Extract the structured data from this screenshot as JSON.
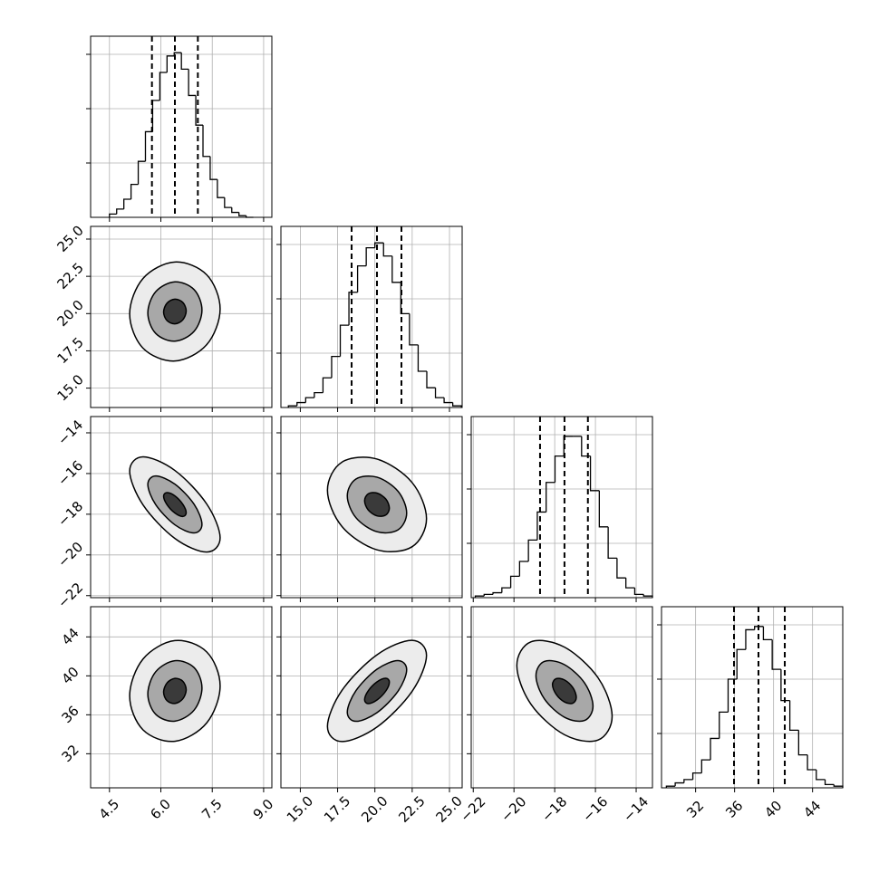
{
  "chart_data": {
    "type": "corner",
    "line_color": "#000000",
    "grid_color": "#b0b0b0",
    "grid": true,
    "contour_fills": [
      "#ececec",
      "#a8a8a8",
      "#3a3a3a"
    ],
    "hist_ylim": [
      0,
      110
    ],
    "hist_yticks": [
      33,
      66,
      99
    ],
    "parameters": [
      {
        "lim": [
          3.95,
          9.24
        ],
        "ticks": [
          4.5,
          {
            "value": 6,
            "label": "6.0"
          },
          7.5,
          {
            "value": 9,
            "label": "9.0"
          }
        ],
        "bins": [
          4.5,
          4.71,
          4.92,
          5.13,
          5.34,
          5.55,
          5.76,
          5.97,
          6.18,
          6.39,
          6.6,
          6.81,
          7.02,
          7.23,
          7.44,
          7.65,
          7.86,
          8.07,
          8.28,
          8.49,
          8.7
        ],
        "counts": [
          2,
          5,
          11,
          20,
          34,
          52,
          71,
          88,
          98,
          100,
          90,
          74,
          56,
          37,
          23,
          12,
          6,
          3,
          1,
          0
        ],
        "quantiles": [
          5.74,
          6.41,
          7.08
        ]
      },
      {
        "lim": [
          13.7,
          25.85
        ],
        "ticks": [
          {
            "value": 15,
            "label": "15.0"
          },
          17.5,
          {
            "value": 20,
            "label": "20.0"
          },
          22.5,
          {
            "value": 25,
            "label": "25.0"
          }
        ],
        "bins": [
          14.2,
          14.78,
          15.36,
          15.94,
          16.52,
          17.1,
          17.68,
          18.26,
          18.84,
          19.42,
          20.0,
          20.58,
          21.16,
          21.74,
          22.32,
          22.9,
          23.48,
          24.06,
          24.64,
          25.22,
          25.8
        ],
        "counts": [
          1,
          3,
          6,
          9,
          18,
          31,
          50,
          70,
          86,
          97,
          100,
          92,
          76,
          57,
          38,
          22,
          12,
          6,
          3,
          1
        ],
        "quantiles": [
          18.44,
          20.14,
          21.78
        ]
      },
      {
        "lim": [
          -22.1,
          -13.2
        ],
        "ticks": [
          {
            "value": -22,
            "label": "−22"
          },
          {
            "value": -20,
            "label": "−20"
          },
          {
            "value": -18,
            "label": "−18"
          },
          {
            "value": -16,
            "label": "−16"
          },
          {
            "value": -14,
            "label": "−14"
          }
        ],
        "bins": [
          -21.9,
          -21.465,
          -21.03,
          -20.595,
          -20.16,
          -19.725,
          -19.29,
          -18.855,
          -18.42,
          -17.985,
          -17.55,
          -17.115,
          -16.68,
          -16.245,
          -15.81,
          -15.375,
          -14.94,
          -14.505,
          -14.07,
          -13.635,
          -13.2
        ],
        "counts": [
          1,
          2,
          3,
          6,
          13,
          22,
          35,
          52,
          70,
          86,
          98,
          98,
          86,
          65,
          43,
          24,
          12,
          6,
          2,
          1
        ],
        "quantiles": [
          -18.72,
          -17.52,
          -16.37
        ]
      },
      {
        "lim": [
          28.5,
          47.1
        ],
        "ticks": [
          32,
          36,
          40,
          44
        ],
        "bins": [
          29,
          29.905,
          30.81,
          31.715,
          32.62,
          33.525,
          34.43,
          35.335,
          36.24,
          37.145,
          38.05,
          38.955,
          39.86,
          40.765,
          41.67,
          42.575,
          43.48,
          44.385,
          45.29,
          46.195,
          47.1
        ],
        "counts": [
          1,
          3,
          5,
          9,
          17,
          30,
          46,
          66,
          84,
          96,
          98,
          90,
          72,
          53,
          35,
          20,
          11,
          5,
          2,
          1
        ],
        "quantiles": [
          35.94,
          38.45,
          41.15
        ]
      }
    ],
    "pairs": [
      {
        "contours": [
          {
            "x": [
              7.73,
              7.34,
              6.41,
              5.48,
              5.09,
              5.48,
              6.41,
              7.34
            ],
            "y": [
              20.31,
              22.6,
              23.46,
              22.36,
              19.97,
              17.68,
              16.82,
              17.92
            ]
          },
          {
            "x": [
              7.2,
              6.97,
              6.41,
              5.85,
              5.62,
              5.85,
              6.41,
              6.97
            ],
            "y": [
              20.24,
              21.61,
              22.13,
              21.47,
              20.04,
              18.67,
              18.15,
              18.81
            ]
          },
          {
            "x": [
              6.74,
              6.64,
              6.41,
              6.18,
              6.08,
              6.18,
              6.41,
              6.64
            ],
            "y": [
              20.18,
              20.75,
              20.97,
              20.7,
              20.1,
              19.53,
              19.31,
              19.58
            ]
          }
        ]
      },
      {
        "contours": [
          {
            "x": [
              7.73,
              7.34,
              6.41,
              5.48,
              5.09,
              5.48,
              6.41,
              7.34
            ],
            "y": [
              -19.16,
              -17.5,
              -15.85,
              -15.18,
              -15.88,
              -17.54,
              -19.19,
              -19.86
            ]
          },
          {
            "x": [
              7.2,
              6.97,
              6.41,
              5.85,
              5.62,
              5.85,
              6.41,
              6.97
            ],
            "y": [
              -18.5,
              -17.51,
              -16.52,
              -16.12,
              -16.54,
              -17.53,
              -18.52,
              -18.92
            ]
          },
          {
            "x": [
              6.74,
              6.64,
              6.41,
              6.18,
              6.08,
              6.18,
              6.41,
              6.64
            ],
            "y": [
              -17.93,
              -17.51,
              -17.1,
              -16.94,
              -17.11,
              -17.53,
              -17.94,
              -18.11
            ]
          }
        ]
      },
      {
        "contours": [
          {
            "x": [
              23.46,
              22.49,
              20.14,
              17.79,
              16.82,
              17.79,
              20.14,
              22.49
            ],
            "y": [
              -18.22,
              -16.44,
              -15.29,
              -15.44,
              -16.82,
              -18.6,
              -19.75,
              -19.6
            ]
          },
          {
            "x": [
              22.13,
              21.55,
              20.14,
              18.73,
              18.15,
              18.73,
              20.14,
              21.55
            ],
            "y": [
              -17.94,
              -16.87,
              -16.18,
              -16.27,
              -17.1,
              -18.17,
              -18.86,
              -18.77
            ]
          },
          {
            "x": [
              20.97,
              20.73,
              20.14,
              19.55,
              19.31,
              19.55,
              20.14,
              20.73
            ],
            "y": [
              -17.7,
              -17.25,
              -16.96,
              -17.0,
              -17.34,
              -17.79,
              -18.08,
              -18.04
            ]
          }
        ]
      },
      {
        "contours": [
          {
            "x": [
              7.73,
              7.34,
              6.41,
              5.48,
              5.09,
              5.48,
              6.41,
              7.34
            ],
            "y": [
              38.97,
              42.45,
              43.62,
              41.73,
              37.93,
              34.45,
              33.28,
              35.17
            ]
          },
          {
            "x": [
              7.2,
              6.97,
              6.41,
              5.85,
              5.62,
              5.85,
              6.41,
              6.97
            ],
            "y": [
              38.76,
              40.85,
              41.55,
              40.42,
              38.14,
              36.05,
              35.35,
              36.48
            ]
          },
          {
            "x": [
              6.74,
              6.64,
              6.41,
              6.18,
              6.08,
              6.18,
              6.41,
              6.64
            ],
            "y": [
              38.58,
              39.45,
              39.74,
              39.27,
              38.32,
              37.45,
              37.16,
              37.63
            ]
          }
        ]
      },
      {
        "contours": [
          {
            "x": [
              23.46,
              22.49,
              20.14,
              17.79,
              16.82,
              17.79,
              20.14,
              22.49
            ],
            "y": [
              42.09,
              43.65,
              42.16,
              38.5,
              34.81,
              33.25,
              34.74,
              38.4
            ]
          },
          {
            "x": [
              22.13,
              21.55,
              20.14,
              18.73,
              18.15,
              18.73,
              20.14,
              21.55
            ],
            "y": [
              40.63,
              41.57,
              40.68,
              38.48,
              36.27,
              35.33,
              36.22,
              38.42
            ]
          },
          {
            "x": [
              20.97,
              20.73,
              20.14,
              19.55,
              19.31,
              19.55,
              20.14,
              20.73
            ],
            "y": [
              39.36,
              39.75,
              39.38,
              38.46,
              37.54,
              37.15,
              37.52,
              38.44
            ]
          }
        ]
      },
      {
        "contours": [
          {
            "x": [
              -15.18,
              -15.87,
              -17.52,
              -19.17,
              -19.86,
              -19.17,
              -17.52,
              -15.87
            ],
            "y": [
              35.85,
              39.8,
              42.95,
              43.49,
              41.05,
              37.1,
              33.95,
              33.41
            ]
          },
          {
            "x": [
              -16.12,
              -16.53,
              -17.52,
              -18.51,
              -18.92,
              -18.51,
              -17.52,
              -16.53
            ],
            "y": [
              36.89,
              39.26,
              41.15,
              41.48,
              40.01,
              37.64,
              35.75,
              35.42
            ]
          },
          {
            "x": [
              -16.94,
              -17.11,
              -17.52,
              -17.93,
              -18.11,
              -17.93,
              -17.52,
              -17.11
            ],
            "y": [
              37.8,
              38.79,
              39.58,
              39.71,
              39.1,
              38.11,
              37.32,
              37.19
            ]
          }
        ]
      }
    ]
  }
}
